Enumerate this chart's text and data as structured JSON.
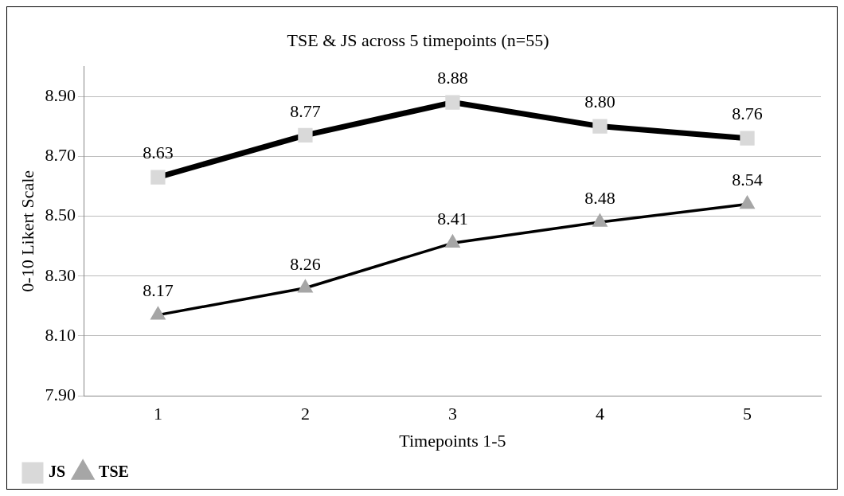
{
  "chart_data": {
    "type": "line",
    "title": "TSE & JS across 5 timepoints (n=55)",
    "xlabel": "Timepoints 1-5",
    "ylabel": "0-10 Likert Scale",
    "categories": [
      "1",
      "2",
      "3",
      "4",
      "5"
    ],
    "series": [
      {
        "name": "JS",
        "color": "#d9d9d9",
        "marker": "square",
        "values": [
          8.63,
          8.77,
          8.88,
          8.8,
          8.76
        ],
        "value_labels": [
          "8.63",
          "8.77",
          "8.88",
          "8.80",
          "8.76"
        ]
      },
      {
        "name": "TSE",
        "color": "#a6a6a6",
        "marker": "triangle",
        "values": [
          8.17,
          8.26,
          8.41,
          8.48,
          8.54
        ],
        "value_labels": [
          "8.17",
          "8.26",
          "8.41",
          "8.48",
          "8.54"
        ]
      }
    ],
    "ylim": [
      7.9,
      9.0
    ],
    "yticks": [
      {
        "value": 7.9,
        "label": "7.90"
      },
      {
        "value": 8.1,
        "label": "8.10"
      },
      {
        "value": 8.3,
        "label": "8.30"
      },
      {
        "value": 8.5,
        "label": "8.50"
      },
      {
        "value": 8.7,
        "label": "8.70"
      },
      {
        "value": 8.9,
        "label": "8.90"
      }
    ],
    "grid": "y",
    "legend": "bottom left"
  }
}
